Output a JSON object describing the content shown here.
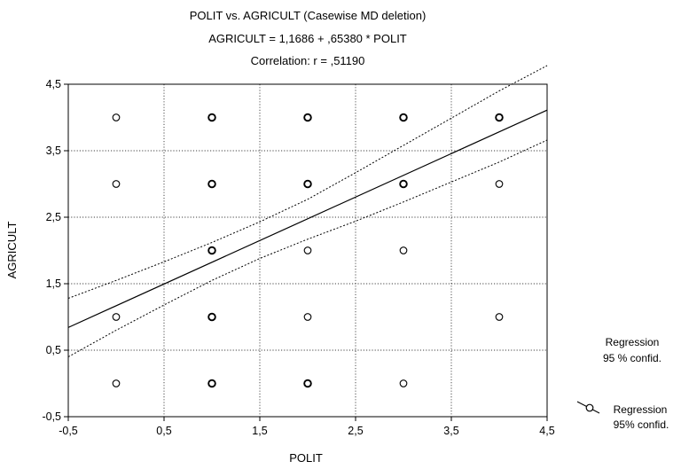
{
  "chart_data": {
    "type": "scatter",
    "title": "POLIT vs. AGRICULT (Casewise MD deletion)",
    "subtitle": "AGRICULT = 1,1686 + ,65380 * POLIT",
    "correlation_text": "Correlation: r = ,51190",
    "xlabel": "POLIT",
    "ylabel": "AGRICULT",
    "xlim": [
      -0.5,
      4.5
    ],
    "ylim": [
      -0.5,
      4.5
    ],
    "x_ticks": [
      -0.5,
      0.5,
      1.5,
      2.5,
      3.5,
      4.5
    ],
    "x_tick_labels": [
      "-0,5",
      "0,5",
      "1,5",
      "2,5",
      "3,5",
      "4,5"
    ],
    "y_ticks": [
      -0.5,
      0.5,
      1.5,
      2.5,
      3.5,
      4.5
    ],
    "y_tick_labels": [
      "-0,5",
      "0,5",
      "1,5",
      "2,5",
      "3,5",
      "4,5"
    ],
    "grid": true,
    "regression": {
      "intercept": 1.1686,
      "slope": 0.6538
    },
    "confidence_band": {
      "upper": [
        [
          -0.5,
          1.28
        ],
        [
          0.0,
          1.55
        ],
        [
          0.5,
          1.83
        ],
        [
          1.0,
          2.12
        ],
        [
          1.5,
          2.43
        ],
        [
          2.0,
          2.77
        ],
        [
          2.5,
          3.17
        ],
        [
          3.0,
          3.58
        ],
        [
          3.5,
          3.99
        ],
        [
          4.0,
          4.4
        ],
        [
          4.5,
          4.78
        ]
      ],
      "lower": [
        [
          -0.5,
          0.4
        ],
        [
          0.0,
          0.8
        ],
        [
          0.5,
          1.18
        ],
        [
          1.0,
          1.55
        ],
        [
          1.5,
          1.88
        ],
        [
          2.0,
          2.17
        ],
        [
          2.5,
          2.44
        ],
        [
          3.0,
          2.73
        ],
        [
          3.5,
          3.03
        ],
        [
          4.0,
          3.33
        ],
        [
          4.5,
          3.66
        ]
      ]
    },
    "points": [
      {
        "x": 0,
        "y": 4,
        "bold": false
      },
      {
        "x": 1,
        "y": 4,
        "bold": true
      },
      {
        "x": 2,
        "y": 4,
        "bold": true
      },
      {
        "x": 3,
        "y": 4,
        "bold": true
      },
      {
        "x": 4,
        "y": 4,
        "bold": true
      },
      {
        "x": 0,
        "y": 3,
        "bold": false
      },
      {
        "x": 1,
        "y": 3,
        "bold": true
      },
      {
        "x": 2,
        "y": 3,
        "bold": true
      },
      {
        "x": 3,
        "y": 3,
        "bold": true
      },
      {
        "x": 4,
        "y": 3,
        "bold": false
      },
      {
        "x": 1,
        "y": 2,
        "bold": true
      },
      {
        "x": 2,
        "y": 2,
        "bold": false
      },
      {
        "x": 3,
        "y": 2,
        "bold": false
      },
      {
        "x": 0,
        "y": 1,
        "bold": false
      },
      {
        "x": 1,
        "y": 1,
        "bold": true
      },
      {
        "x": 2,
        "y": 1,
        "bold": false
      },
      {
        "x": 4,
        "y": 1,
        "bold": false
      },
      {
        "x": 0,
        "y": 0,
        "bold": false
      },
      {
        "x": 1,
        "y": 0,
        "bold": true
      },
      {
        "x": 2,
        "y": 0,
        "bold": true
      },
      {
        "x": 3,
        "y": 0,
        "bold": false
      }
    ],
    "legend": {
      "placement": "right",
      "top_lines": [
        "Regression",
        "95 % confid."
      ],
      "bottom_lines": [
        "Regression",
        "95% confid."
      ]
    }
  }
}
